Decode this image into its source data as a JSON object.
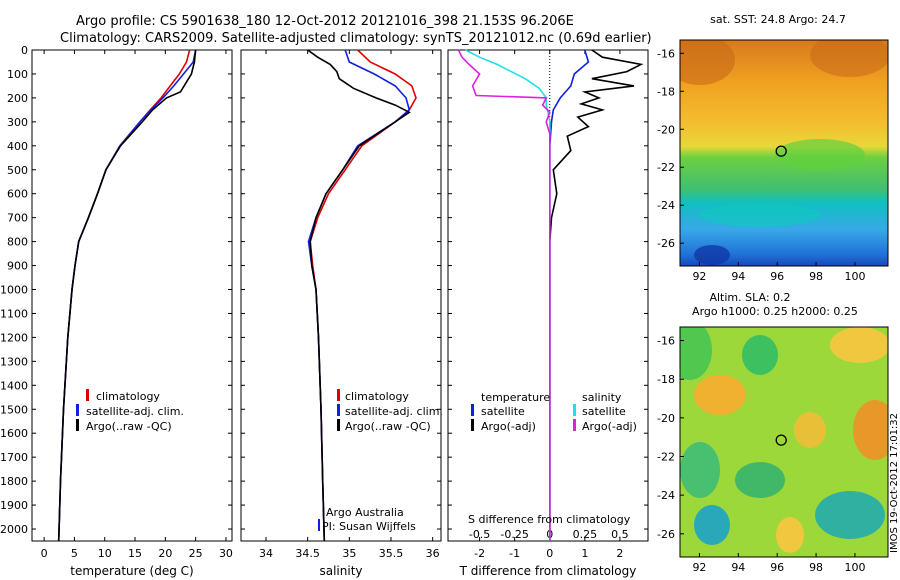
{
  "header": {
    "line1": "Argo profile: CS 5901638_180 12-Oct-2012 20121016_398 21.153S 96.206E",
    "line2": "Climatology: CARS2009. Satellite-adjusted climatology: synTS_20121012.nc (0.69d earlier)"
  },
  "colors": {
    "climatology": "#e00000",
    "satellite": "#1020e0",
    "argo": "#000000",
    "sal_satellite": "#20e0e8",
    "sal_argo": "#e020e0"
  },
  "chart_data": [
    {
      "type": "line",
      "xlabel": "temperature (deg C)",
      "xlim": [
        -2,
        31
      ],
      "ylim": [
        2050,
        0
      ],
      "xticks": [
        0,
        5,
        10,
        15,
        20,
        25,
        30
      ],
      "yticks": [
        0,
        100,
        200,
        300,
        400,
        500,
        600,
        700,
        800,
        900,
        1000,
        1100,
        1200,
        1300,
        1400,
        1500,
        1600,
        1700,
        1800,
        1900,
        2000
      ],
      "legend": [
        "climatology",
        "satellite-adj. clim.",
        "Argo(..raw -QC)"
      ],
      "series": [
        {
          "name": "climatology",
          "depth": [
            0,
            50,
            100,
            150,
            200,
            250,
            300,
            400,
            500,
            600,
            700,
            800,
            900,
            1000,
            1200,
            1500,
            1800,
            2050
          ],
          "values": [
            24,
            23.5,
            22.3,
            20.8,
            19.3,
            17.5,
            15.8,
            12.5,
            10.2,
            8.8,
            7.3,
            5.7,
            5.1,
            4.6,
            3.9,
            3.2,
            2.7,
            2.4
          ]
        },
        {
          "name": "satellite-adj. clim.",
          "depth": [
            0,
            50,
            100,
            150,
            200,
            250,
            300,
            400,
            500,
            600,
            700,
            800,
            900,
            1000,
            1200,
            1500,
            1800,
            2050
          ],
          "values": [
            25,
            24.6,
            23,
            21.4,
            19.6,
            17.6,
            15.8,
            12.5,
            10.2,
            8.8,
            7.3,
            5.7,
            5.1,
            4.6,
            3.9,
            3.2,
            2.7,
            2.4
          ]
        },
        {
          "name": "Argo(..raw -QC)",
          "depth": [
            0,
            50,
            100,
            150,
            175,
            200,
            250,
            300,
            400,
            500,
            600,
            700,
            800,
            900,
            1000,
            1200,
            1500,
            1800,
            2050
          ],
          "values": [
            25,
            24.8,
            24.3,
            23.1,
            22.5,
            20.2,
            17.9,
            16.2,
            12.6,
            10.2,
            8.8,
            7.3,
            5.7,
            5.1,
            4.6,
            3.9,
            3.2,
            2.7,
            2.4
          ]
        }
      ]
    },
    {
      "type": "line",
      "xlabel": "salinity",
      "xlim": [
        33.7,
        36.1
      ],
      "ylim": [
        2050,
        0
      ],
      "xticks": [
        34,
        34.5,
        35,
        35.5,
        36
      ],
      "xtick_labels": [
        "34",
        "34.5",
        "35",
        "35.5",
        "36"
      ],
      "legend": [
        "climatology",
        "satellite-adj. clim.",
        "Argo(..raw -QC)"
      ],
      "annotations": [
        "Argo Australia",
        "PI: Susan Wijffels"
      ],
      "series": [
        {
          "name": "climatology",
          "depth": [
            0,
            50,
            100,
            150,
            200,
            250,
            300,
            400,
            500,
            600,
            700,
            800,
            900,
            1000,
            1200,
            1500,
            1800,
            2050
          ],
          "values": [
            35.1,
            35.25,
            35.55,
            35.75,
            35.8,
            35.72,
            35.55,
            35.15,
            34.95,
            34.75,
            34.62,
            34.53,
            34.56,
            34.6,
            34.63,
            34.66,
            34.68,
            34.7
          ]
        },
        {
          "name": "satellite-adj. clim.",
          "depth": [
            0,
            50,
            100,
            150,
            200,
            250,
            300,
            400,
            500,
            600,
            700,
            800,
            900,
            1000,
            1200,
            1500,
            1800,
            2050
          ],
          "values": [
            34.95,
            35.0,
            35.3,
            35.55,
            35.68,
            35.72,
            35.55,
            35.1,
            34.92,
            34.72,
            34.6,
            34.51,
            34.55,
            34.6,
            34.63,
            34.66,
            34.68,
            34.7
          ]
        },
        {
          "name": "Argo(..raw -QC)",
          "depth": [
            0,
            30,
            60,
            90,
            120,
            160,
            200,
            230,
            260,
            300,
            400,
            500,
            600,
            700,
            800,
            900,
            1000,
            1200,
            1500,
            1800,
            2050
          ],
          "values": [
            34.5,
            34.62,
            34.77,
            34.85,
            34.88,
            35.05,
            35.32,
            35.55,
            35.72,
            35.55,
            35.12,
            34.92,
            34.72,
            34.6,
            34.53,
            34.55,
            34.6,
            34.63,
            34.66,
            34.68,
            34.7
          ]
        }
      ]
    },
    {
      "type": "line",
      "xlabel": "T difference from climatology",
      "xlabel_top": "S difference from climatology",
      "xlim": [
        -2.9,
        2.8
      ],
      "ylim": [
        2050,
        0
      ],
      "xticks": [
        -2,
        -1,
        0,
        1,
        2
      ],
      "top_ticks": [
        "-0.5",
        "-0.25",
        "0",
        "0.25",
        "0.5"
      ],
      "legend_temperature": [
        "temperature",
        "satellite",
        "Argo(-adj)"
      ],
      "legend_salinity": [
        "salinity",
        "satellite",
        "Argo(-adj)"
      ],
      "series": [
        {
          "name": "temperature satellite",
          "depth": [
            0,
            50,
            100,
            150,
            200,
            250,
            300,
            400,
            500,
            700,
            900,
            1200,
            1500,
            1800,
            2050
          ],
          "values": [
            1.0,
            1.1,
            0.7,
            0.6,
            0.3,
            0.1,
            0.05,
            0,
            0,
            0,
            0,
            0,
            0,
            0,
            0
          ]
        },
        {
          "name": "temperature Argo(-adj)",
          "depth": [
            0,
            30,
            60,
            90,
            120,
            150,
            175,
            200,
            225,
            250,
            280,
            320,
            360,
            420,
            500,
            600,
            700,
            800,
            1000,
            1300,
            1600,
            1900,
            2050
          ],
          "values": [
            1.2,
            1.5,
            2.6,
            2.2,
            1.2,
            2.4,
            1.0,
            1.4,
            0.9,
            1.5,
            0.8,
            1.1,
            0.5,
            0.6,
            0.1,
            0.2,
            0.05,
            0,
            0,
            0,
            0,
            0,
            0
          ]
        },
        {
          "name": "salinity satellite",
          "depth": [
            0,
            30,
            60,
            90,
            120,
            160,
            200,
            230,
            260,
            300,
            350,
            400,
            500,
            700,
            900,
            1200,
            1500,
            1800,
            2050
          ],
          "values": [
            -2.4,
            -2.0,
            -1.5,
            -1.1,
            -0.7,
            -0.3,
            -0.1,
            -0.1,
            -0.05,
            0,
            0,
            0,
            0,
            0,
            0,
            0,
            0,
            0,
            0
          ]
        },
        {
          "name": "salinity Argo(-adj)",
          "depth": [
            0,
            30,
            60,
            100,
            150,
            190,
            200,
            230,
            260,
            300,
            350,
            400,
            500,
            700,
            900,
            1200,
            1500,
            1800,
            2050
          ],
          "values": [
            -2.6,
            -2.5,
            -2.3,
            -2.0,
            -2.2,
            -2.1,
            -0.1,
            -0.2,
            0,
            -0.1,
            0,
            0,
            0,
            0,
            0,
            0,
            0,
            0,
            0
          ]
        }
      ]
    }
  ],
  "maps": {
    "sst": {
      "title": "sat. SST: 24.8 Argo: 24.7",
      "xticks": [
        "92",
        "94",
        "96",
        "98",
        "100"
      ],
      "yticks": [
        "-16",
        "-18",
        "-20",
        "-22",
        "-24",
        "-26"
      ]
    },
    "sla": {
      "title1": "Altim. SLA: 0.2",
      "title2": "Argo h1000: 0.25 h2000: 0.25",
      "xticks": [
        "92",
        "94",
        "96",
        "98",
        "100"
      ],
      "yticks": [
        "-16",
        "-18",
        "-20",
        "-22",
        "-24",
        "-26"
      ]
    },
    "float_lon": 96.206,
    "float_lat": -21.153
  },
  "side_label": "IMOS 19-Oct-2012 17:01:32"
}
